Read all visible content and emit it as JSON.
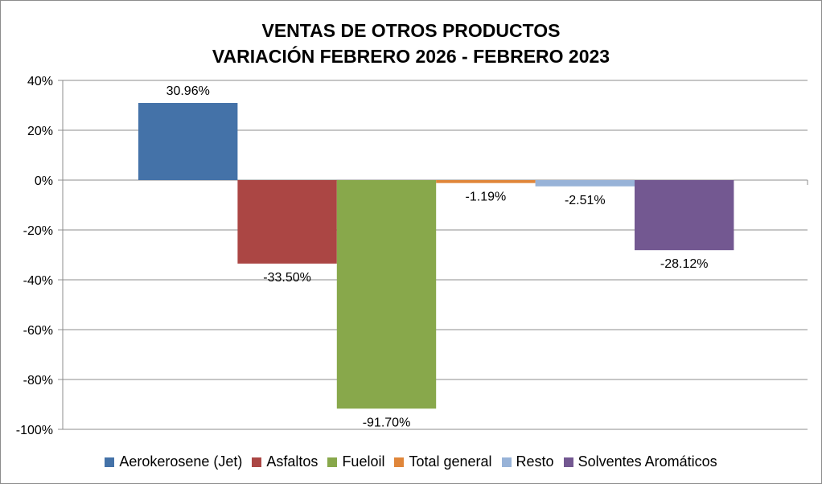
{
  "chart_data": {
    "type": "bar",
    "title_line1": "VENTAS DE OTROS PRODUCTOS",
    "title_line2": "VARIACIÓN FEBRERO 2026 - FEBRERO 2023",
    "xlabel": "",
    "ylabel": "",
    "ylim": [
      -100,
      40
    ],
    "yticks": [
      40,
      20,
      0,
      -20,
      -40,
      -60,
      -80,
      -100
    ],
    "ytick_labels": [
      "40%",
      "20%",
      "0%",
      "-20%",
      "-40%",
      "-60%",
      "-80%",
      "-100%"
    ],
    "grid": true,
    "legend_position": "bottom",
    "series": [
      {
        "name": "Aerokerosene (Jet)",
        "value": 30.96,
        "label": "30.96%",
        "color": "#4472a8"
      },
      {
        "name": "Asfaltos",
        "value": -33.5,
        "label": "-33.50%",
        "color": "#ab4644"
      },
      {
        "name": "Fueloil",
        "value": -91.7,
        "label": "-91.70%",
        "color": "#88a84b"
      },
      {
        "name": "Total general",
        "value": -1.19,
        "label": "-1.19%",
        "color": "#e0863a"
      },
      {
        "name": "Resto",
        "value": -2.51,
        "label": "-2.51%",
        "color": "#98b3d8"
      },
      {
        "name": "Solventes Aromáticos",
        "value": -28.12,
        "label": "-28.12%",
        "color": "#735891"
      }
    ]
  }
}
